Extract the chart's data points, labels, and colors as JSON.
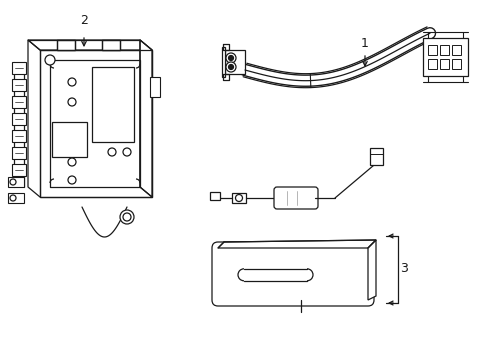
{
  "background_color": "#ffffff",
  "line_color": "#1a1a1a",
  "gray_color": "#aaaaaa",
  "label_1": "1",
  "label_2": "2",
  "label_3": "3",
  "figsize": [
    4.9,
    3.6
  ],
  "dpi": 100
}
